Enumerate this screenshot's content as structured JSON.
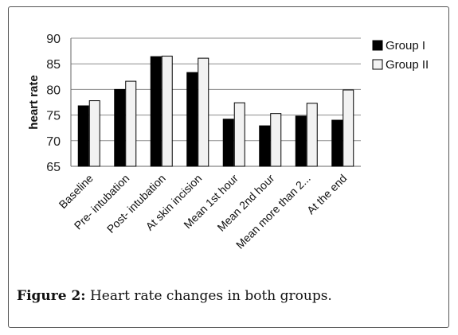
{
  "figure": {
    "caption_label": "Figure 2:",
    "caption_text": " Heart rate changes in both groups."
  },
  "chart_data": {
    "type": "bar",
    "title": "",
    "xlabel": "",
    "ylabel": "heart rate",
    "ylim": [
      65,
      90
    ],
    "yticks": [
      65,
      70,
      75,
      80,
      85,
      90
    ],
    "grid": true,
    "legend_position": "right",
    "categories": [
      "Baseline",
      "Pre- intubation",
      "Post- intubation",
      "At skin incision",
      "Mean 1st hour",
      "Mean 2nd hour",
      "Mean more than 2...",
      "At the end"
    ],
    "series": [
      {
        "name": "Group I",
        "color": "#000000",
        "values": [
          76.8,
          80.0,
          86.4,
          83.3,
          74.2,
          72.9,
          74.8,
          74.0
        ]
      },
      {
        "name": "Group II",
        "color": "#f2f2f2",
        "values": [
          77.8,
          81.6,
          86.5,
          86.1,
          77.4,
          75.3,
          77.3,
          79.9
        ]
      }
    ]
  }
}
